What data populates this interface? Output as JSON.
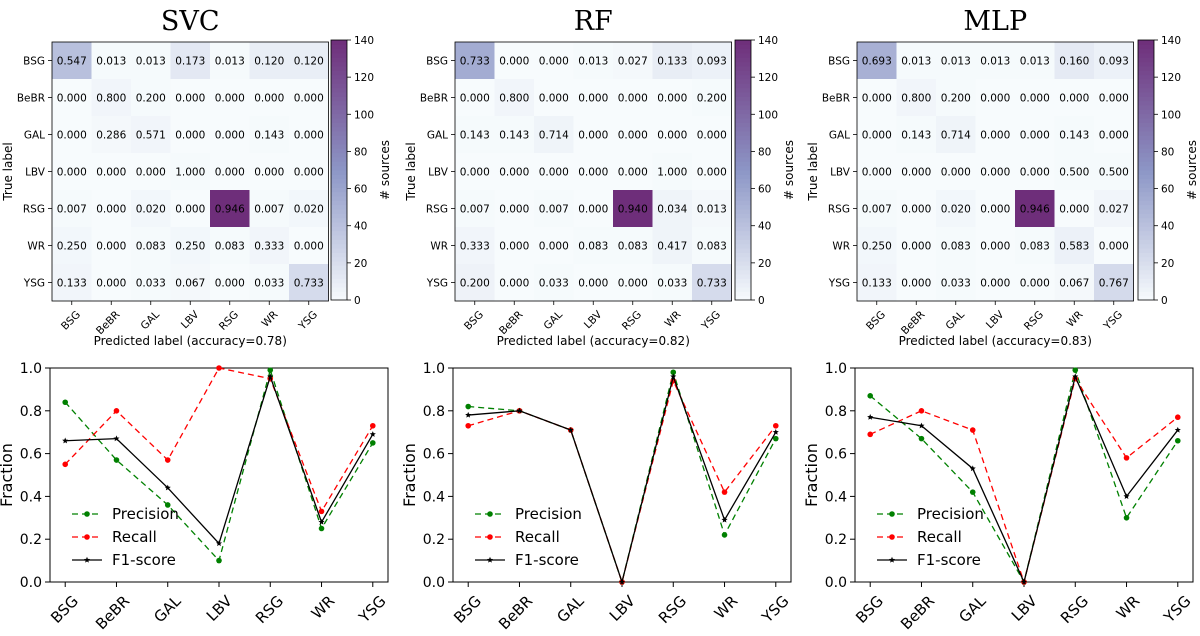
{
  "chart_data": [
    {
      "type": "heatmap",
      "title": "SVC",
      "xlabel": "Predicted label (accuracy=0.78)",
      "ylabel": "True label",
      "row_labels": [
        "BSG",
        "BeBR",
        "GAL",
        "LBV",
        "RSG",
        "WR",
        "YSG"
      ],
      "col_labels": [
        "BSG",
        "BeBR",
        "GAL",
        "LBV",
        "RSG",
        "WR",
        "YSG"
      ],
      "values": [
        [
          0.547,
          0.013,
          0.013,
          0.173,
          0.013,
          0.12,
          0.12
        ],
        [
          0.0,
          0.8,
          0.2,
          0.0,
          0.0,
          0.0,
          0.0
        ],
        [
          0.0,
          0.286,
          0.571,
          0.0,
          0.0,
          0.143,
          0.0
        ],
        [
          0.0,
          0.0,
          0.0,
          1.0,
          0.0,
          0.0,
          0.0
        ],
        [
          0.007,
          0.0,
          0.02,
          0.0,
          0.946,
          0.007,
          0.02
        ],
        [
          0.25,
          0.0,
          0.083,
          0.25,
          0.083,
          0.333,
          0.0
        ],
        [
          0.133,
          0.0,
          0.033,
          0.067,
          0.0,
          0.033,
          0.733
        ]
      ],
      "cell_labels": [
        [
          "0.547",
          "0.013",
          "0.013",
          "0.173",
          "0.013",
          "0.120",
          "0.120"
        ],
        [
          "0.000",
          "0.800",
          "0.200",
          "0.000",
          "0.000",
          "0.000",
          "0.000"
        ],
        [
          "0.000",
          "0.286",
          "0.571",
          "0.000",
          "0.000",
          "0.143",
          "0.000"
        ],
        [
          "0.000",
          "0.000",
          "0.000",
          "1.000",
          "0.000",
          "0.000",
          "0.000"
        ],
        [
          "0.007",
          "0.000",
          "0.020",
          "0.000",
          "0.946",
          "0.007",
          "0.020"
        ],
        [
          "0.250",
          "0.000",
          "0.083",
          "0.250",
          "0.083",
          "0.333",
          "0.000"
        ],
        [
          "0.133",
          "0.000",
          "0.033",
          "0.067",
          "0.000",
          "0.033",
          "0.733"
        ]
      ],
      "counts": [
        [
          41,
          1,
          1,
          13,
          1,
          9,
          9
        ],
        [
          0,
          4,
          1,
          0,
          0,
          0,
          0
        ],
        [
          0,
          2,
          4,
          0,
          0,
          1,
          0
        ],
        [
          0,
          0,
          0,
          1,
          0,
          0,
          0
        ],
        [
          1,
          0,
          3,
          0,
          141,
          1,
          3
        ],
        [
          3,
          0,
          1,
          3,
          1,
          4,
          0
        ],
        [
          4,
          0,
          1,
          2,
          0,
          1,
          22
        ]
      ],
      "colorbar": {
        "label": "# sources",
        "range": [
          0,
          140
        ],
        "ticks": [
          "0",
          "20",
          "40",
          "60",
          "80",
          "100",
          "120",
          "140"
        ]
      }
    },
    {
      "type": "heatmap",
      "title": "RF",
      "xlabel": "Predicted label (accuracy=0.82)",
      "ylabel": "True label",
      "row_labels": [
        "BSG",
        "BeBR",
        "GAL",
        "LBV",
        "RSG",
        "WR",
        "YSG"
      ],
      "col_labels": [
        "BSG",
        "BeBR",
        "GAL",
        "LBV",
        "RSG",
        "WR",
        "YSG"
      ],
      "values": [
        [
          0.733,
          0.0,
          0.0,
          0.013,
          0.027,
          0.133,
          0.093
        ],
        [
          0.0,
          0.8,
          0.0,
          0.0,
          0.0,
          0.0,
          0.2
        ],
        [
          0.143,
          0.143,
          0.714,
          0.0,
          0.0,
          0.0,
          0.0
        ],
        [
          0.0,
          0.0,
          0.0,
          0.0,
          0.0,
          1.0,
          0.0
        ],
        [
          0.007,
          0.0,
          0.007,
          0.0,
          0.94,
          0.034,
          0.013
        ],
        [
          0.333,
          0.0,
          0.0,
          0.083,
          0.083,
          0.417,
          0.083
        ],
        [
          0.2,
          0.0,
          0.033,
          0.0,
          0.0,
          0.033,
          0.733
        ]
      ],
      "cell_labels": [
        [
          "0.733",
          "0.000",
          "0.000",
          "0.013",
          "0.027",
          "0.133",
          "0.093"
        ],
        [
          "0.000",
          "0.800",
          "0.000",
          "0.000",
          "0.000",
          "0.000",
          "0.200"
        ],
        [
          "0.143",
          "0.143",
          "0.714",
          "0.000",
          "0.000",
          "0.000",
          "0.000"
        ],
        [
          "0.000",
          "0.000",
          "0.000",
          "0.000",
          "0.000",
          "1.000",
          "0.000"
        ],
        [
          "0.007",
          "0.000",
          "0.007",
          "0.000",
          "0.940",
          "0.034",
          "0.013"
        ],
        [
          "0.333",
          "0.000",
          "0.000",
          "0.083",
          "0.083",
          "0.417",
          "0.083"
        ],
        [
          "0.200",
          "0.000",
          "0.033",
          "0.000",
          "0.000",
          "0.033",
          "0.733"
        ]
      ],
      "counts": [
        [
          55,
          0,
          0,
          1,
          2,
          10,
          7
        ],
        [
          0,
          4,
          0,
          0,
          0,
          0,
          1
        ],
        [
          1,
          1,
          5,
          0,
          0,
          0,
          0
        ],
        [
          0,
          0,
          0,
          0,
          0,
          1,
          0
        ],
        [
          1,
          0,
          1,
          0,
          140,
          5,
          2
        ],
        [
          4,
          0,
          0,
          1,
          1,
          5,
          1
        ],
        [
          6,
          0,
          1,
          0,
          0,
          1,
          22
        ]
      ],
      "colorbar": {
        "label": "# sources",
        "range": [
          0,
          140
        ],
        "ticks": [
          "0",
          "20",
          "40",
          "60",
          "80",
          "100",
          "120",
          "140"
        ]
      }
    },
    {
      "type": "heatmap",
      "title": "MLP",
      "xlabel": "Predicted label (accuracy=0.83)",
      "ylabel": "True label",
      "row_labels": [
        "BSG",
        "BeBR",
        "GAL",
        "LBV",
        "RSG",
        "WR",
        "YSG"
      ],
      "col_labels": [
        "BSG",
        "BeBR",
        "GAL",
        "LBV",
        "RSG",
        "WR",
        "YSG"
      ],
      "values": [
        [
          0.693,
          0.013,
          0.013,
          0.013,
          0.013,
          0.16,
          0.093
        ],
        [
          0.0,
          0.8,
          0.2,
          0.0,
          0.0,
          0.0,
          0.0
        ],
        [
          0.0,
          0.143,
          0.714,
          0.0,
          0.0,
          0.143,
          0.0
        ],
        [
          0.0,
          0.0,
          0.0,
          0.0,
          0.0,
          0.5,
          0.5
        ],
        [
          0.007,
          0.0,
          0.02,
          0.0,
          0.946,
          0.0,
          0.027
        ],
        [
          0.25,
          0.0,
          0.083,
          0.0,
          0.083,
          0.583,
          0.0
        ],
        [
          0.133,
          0.0,
          0.033,
          0.0,
          0.0,
          0.067,
          0.767
        ]
      ],
      "cell_labels": [
        [
          "0.693",
          "0.013",
          "0.013",
          "0.013",
          "0.013",
          "0.160",
          "0.093"
        ],
        [
          "0.000",
          "0.800",
          "0.200",
          "0.000",
          "0.000",
          "0.000",
          "0.000"
        ],
        [
          "0.000",
          "0.143",
          "0.714",
          "0.000",
          "0.000",
          "0.143",
          "0.000"
        ],
        [
          "0.000",
          "0.000",
          "0.000",
          "0.000",
          "0.000",
          "0.500",
          "0.500"
        ],
        [
          "0.007",
          "0.000",
          "0.020",
          "0.000",
          "0.946",
          "0.000",
          "0.027"
        ],
        [
          "0.250",
          "0.000",
          "0.083",
          "0.000",
          "0.083",
          "0.583",
          "0.000"
        ],
        [
          "0.133",
          "0.000",
          "0.033",
          "0.000",
          "0.000",
          "0.067",
          "0.767"
        ]
      ],
      "counts": [
        [
          52,
          1,
          1,
          1,
          1,
          12,
          7
        ],
        [
          0,
          4,
          1,
          0,
          0,
          0,
          0
        ],
        [
          0,
          1,
          5,
          0,
          0,
          1,
          0
        ],
        [
          0,
          0,
          0,
          0,
          0,
          1,
          1
        ],
        [
          1,
          0,
          3,
          0,
          141,
          0,
          4
        ],
        [
          3,
          0,
          1,
          0,
          1,
          7,
          0
        ],
        [
          4,
          0,
          1,
          0,
          0,
          2,
          23
        ]
      ],
      "colorbar": {
        "label": "# sources",
        "range": [
          0,
          140
        ],
        "ticks": [
          "0",
          "20",
          "40",
          "60",
          "80",
          "100",
          "120",
          "140"
        ]
      }
    },
    {
      "type": "line",
      "categories": [
        "BSG",
        "BeBR",
        "GAL",
        "LBV",
        "RSG",
        "WR",
        "YSG"
      ],
      "ylabel": "Fraction",
      "ylim": [
        0.0,
        1.0
      ],
      "yticks": [
        "0.0",
        "0.2",
        "0.4",
        "0.6",
        "0.8",
        "1.0"
      ],
      "legend_position": "lower-left",
      "series": [
        {
          "name": "Precision",
          "values": [
            0.84,
            0.57,
            0.36,
            0.1,
            0.99,
            0.25,
            0.65
          ]
        },
        {
          "name": "Recall",
          "values": [
            0.55,
            0.8,
            0.57,
            1.0,
            0.95,
            0.33,
            0.73
          ]
        },
        {
          "name": "F1-score",
          "values": [
            0.66,
            0.67,
            0.44,
            0.18,
            0.96,
            0.28,
            0.69
          ]
        }
      ]
    },
    {
      "type": "line",
      "categories": [
        "BSG",
        "BeBR",
        "GAL",
        "LBV",
        "RSG",
        "WR",
        "YSG"
      ],
      "ylabel": "Fraction",
      "ylim": [
        0.0,
        1.0
      ],
      "yticks": [
        "0.0",
        "0.2",
        "0.4",
        "0.6",
        "0.8",
        "1.0"
      ],
      "legend_position": "lower-left",
      "series": [
        {
          "name": "Precision",
          "values": [
            0.82,
            0.8,
            0.71,
            0.0,
            0.98,
            0.22,
            0.67
          ]
        },
        {
          "name": "Recall",
          "values": [
            0.73,
            0.8,
            0.71,
            0.0,
            0.94,
            0.42,
            0.73
          ]
        },
        {
          "name": "F1-score",
          "values": [
            0.78,
            0.8,
            0.71,
            0.0,
            0.96,
            0.29,
            0.7
          ]
        }
      ]
    },
    {
      "type": "line",
      "categories": [
        "BSG",
        "BeBR",
        "GAL",
        "LBV",
        "RSG",
        "WR",
        "YSG"
      ],
      "ylabel": "Fraction",
      "ylim": [
        0.0,
        1.0
      ],
      "yticks": [
        "0.0",
        "0.2",
        "0.4",
        "0.6",
        "0.8",
        "1.0"
      ],
      "legend_position": "lower-left",
      "series": [
        {
          "name": "Precision",
          "values": [
            0.87,
            0.67,
            0.42,
            0.0,
            0.99,
            0.3,
            0.66
          ]
        },
        {
          "name": "Recall",
          "values": [
            0.69,
            0.8,
            0.71,
            0.0,
            0.95,
            0.58,
            0.77
          ]
        },
        {
          "name": "F1-score",
          "values": [
            0.77,
            0.73,
            0.53,
            0.0,
            0.96,
            0.4,
            0.71
          ]
        }
      ]
    }
  ],
  "colors": {
    "precision": "#008000",
    "recall": "#ff0000",
    "f1": "#000000",
    "colormap_low": "#f7fbfd",
    "colormap_mid": "#8c96c6",
    "colormap_high": "#6e2e7a"
  }
}
